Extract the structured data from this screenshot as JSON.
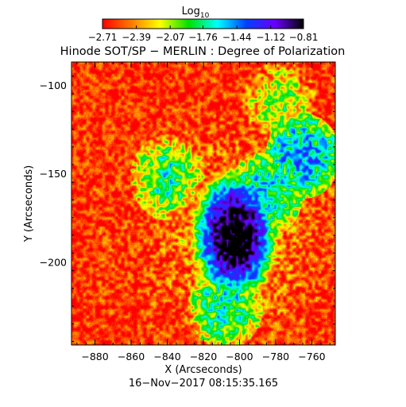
{
  "chart_data": {
    "type": "heatmap",
    "title": "Hinode SOT/SP − MERLIN : Degree of Polarization",
    "xlabel": "X (Arcseconds)",
    "ylabel": "Y (Arcseconds)",
    "timestamp": "16−Nov−2017 08:15:35.165",
    "xlim": [
      -893,
      -747
    ],
    "ylim": [
      -247,
      -87
    ],
    "x_ticks": [
      -880,
      -860,
      -840,
      -820,
      -800,
      -780,
      -760
    ],
    "x_tick_labels": [
      "−880",
      "−860",
      "−840",
      "−820",
      "−800",
      "−780",
      "−760"
    ],
    "y_ticks": [
      -100,
      -150,
      -200
    ],
    "y_tick_labels": [
      "−100",
      "−150",
      "−200"
    ],
    "colorbar": {
      "label": "Log",
      "label_subscript": "10",
      "range": [
        -2.71,
        -0.81
      ],
      "tick_values": [
        -2.71,
        -2.39,
        -2.07,
        -1.76,
        -1.44,
        -1.12,
        -0.81
      ],
      "tick_labels": [
        "−2.71",
        "−2.39",
        "−2.07",
        "−1.76",
        "−1.44",
        "−1.12",
        "−0.81"
      ],
      "colors": [
        "#ff0000",
        "#ff7a00",
        "#ffff00",
        "#00e000",
        "#00ffff",
        "#0040ff",
        "#6a00ff",
        "#000000"
      ]
    },
    "features": {
      "background_level": -2.6,
      "peak_level": -0.9,
      "spot_center": [
        -803,
        -185
      ],
      "secondary_patches": [
        {
          "center": [
            -786,
            -162
          ],
          "level": -1.5
        },
        {
          "center": [
            -765,
            -140
          ],
          "level": -1.4
        },
        {
          "center": [
            -840,
            -152
          ],
          "level": -1.7
        },
        {
          "center": [
            -808,
            -225
          ],
          "level": -1.6
        },
        {
          "center": [
            -778,
            -110
          ],
          "level": -1.9
        }
      ]
    }
  }
}
